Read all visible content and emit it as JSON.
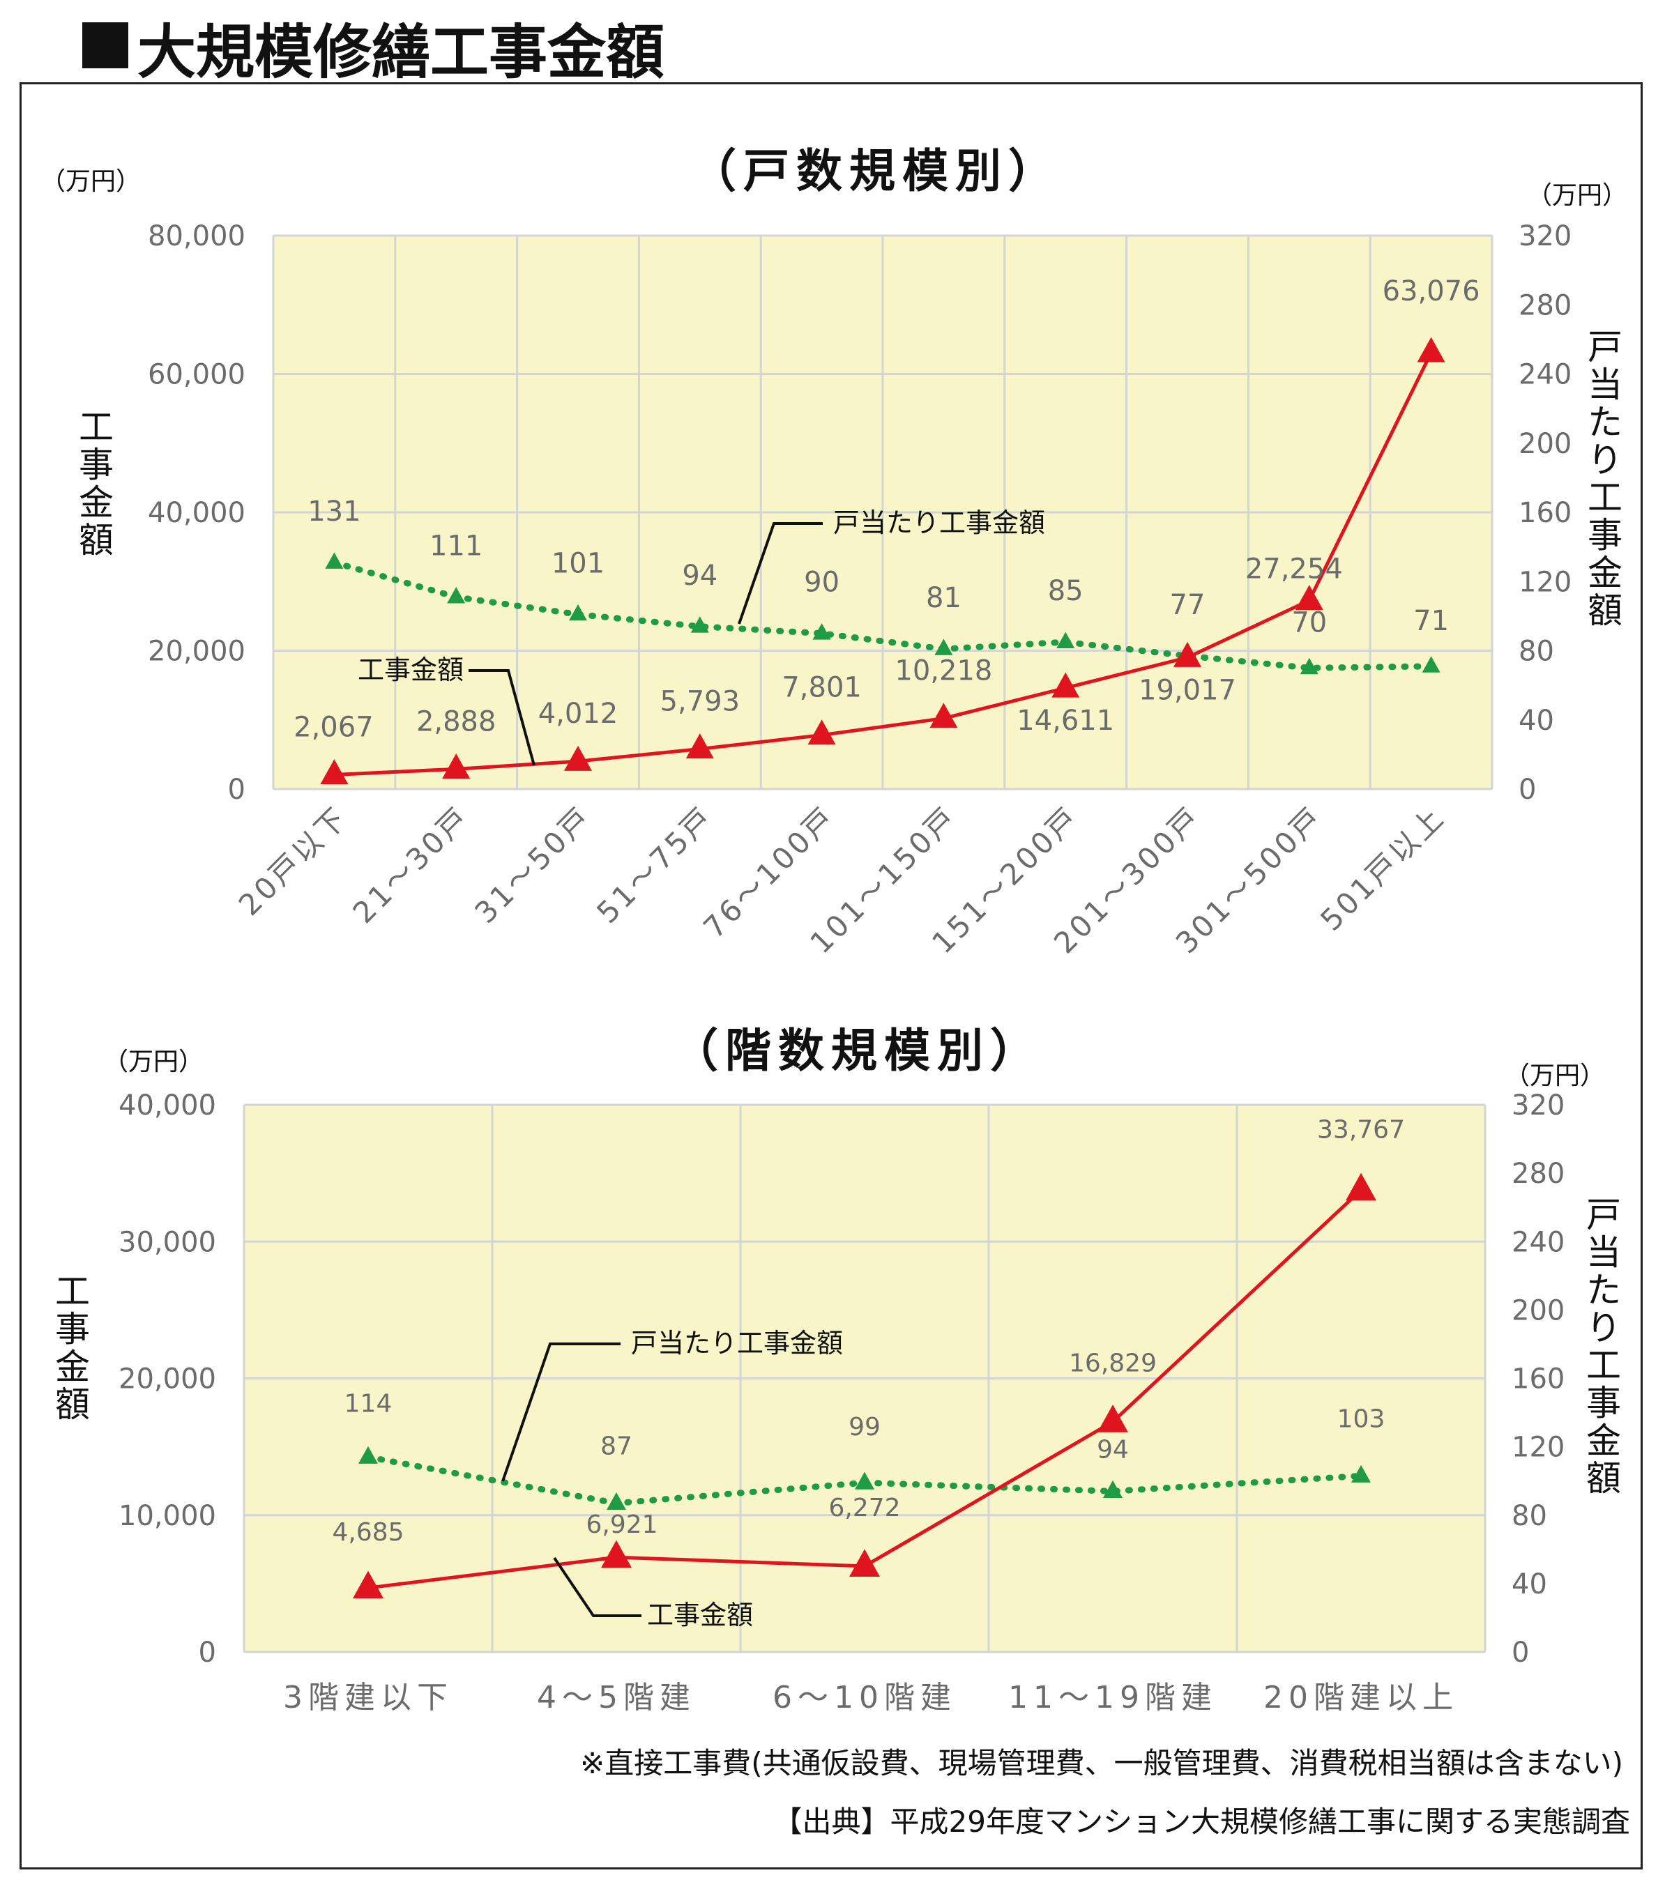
{
  "page_title": "大規模修繕工事金額",
  "note": "※直接工事費(共通仮設費、現場管理費、一般管理費、消費税相当額は含まない)",
  "source": "【出典】平成29年度マンション大規模修繕工事に関する実態調査",
  "colors": {
    "plot_bg": "#f8f6c8",
    "grid": "#d4d4d4",
    "total_series": "#e0141e",
    "per_unit_series": "#1f9a45",
    "tick_text": "#6b6b6b",
    "label_text": "#111111"
  },
  "chart_data": [
    {
      "type": "line",
      "title": "（戸数規模別）",
      "left_unit": "（万円）",
      "right_unit": "（万円）",
      "ylabel": "工事金額",
      "y2label": "戸当たり工事金額",
      "ylim": [
        0,
        80000
      ],
      "y2lim": [
        0,
        320
      ],
      "yticks": [
        "0",
        "20,000",
        "40,000",
        "60,000",
        "80,000"
      ],
      "y2ticks": [
        "0",
        "40",
        "80",
        "120",
        "160",
        "200",
        "240",
        "280",
        "320"
      ],
      "categories": [
        "20戸以下",
        "21～30戸",
        "31～50戸",
        "51～75戸",
        "76～100戸",
        "101～150戸",
        "151～200戸",
        "201～300戸",
        "301～500戸",
        "501戸以上"
      ],
      "series": [
        {
          "name": "工事金額",
          "axis": "left",
          "values": [
            2067,
            2888,
            4012,
            5793,
            7801,
            10218,
            14611,
            19017,
            27254,
            63076
          ],
          "labels": [
            "2,067",
            "2,888",
            "4,012",
            "5,793",
            "7,801",
            "10,218",
            "14,611",
            "19,017",
            "27,254",
            "63,076"
          ]
        },
        {
          "name": "戸当たり工事金額",
          "axis": "right",
          "values": [
            131,
            111,
            101,
            94,
            90,
            81,
            85,
            77,
            70,
            71
          ],
          "labels": [
            "131",
            "111",
            "101",
            "94",
            "90",
            "81",
            "85",
            "77",
            "70",
            "71"
          ]
        }
      ]
    },
    {
      "type": "line",
      "title": "（階数規模別）",
      "left_unit": "（万円）",
      "right_unit": "（万円）",
      "ylabel": "工事金額",
      "y2label": "戸当たり工事金額",
      "ylim": [
        0,
        40000
      ],
      "y2lim": [
        0,
        320
      ],
      "yticks": [
        "0",
        "10,000",
        "20,000",
        "30,000",
        "40,000"
      ],
      "y2ticks": [
        "0",
        "40",
        "80",
        "120",
        "160",
        "200",
        "240",
        "280",
        "320"
      ],
      "categories": [
        "3階建以下",
        "4～5階建",
        "6～10階建",
        "11～19階建",
        "20階建以上"
      ],
      "series": [
        {
          "name": "工事金額",
          "axis": "left",
          "values": [
            4685,
            6921,
            6272,
            16829,
            33767
          ],
          "labels": [
            "4,685",
            "6,921",
            "6,272",
            "16,829",
            "33,767"
          ]
        },
        {
          "name": "戸当たり工事金額",
          "axis": "right",
          "values": [
            114,
            87,
            99,
            94,
            103
          ],
          "labels": [
            "114",
            "87",
            "99",
            "94",
            "103"
          ]
        }
      ]
    }
  ]
}
